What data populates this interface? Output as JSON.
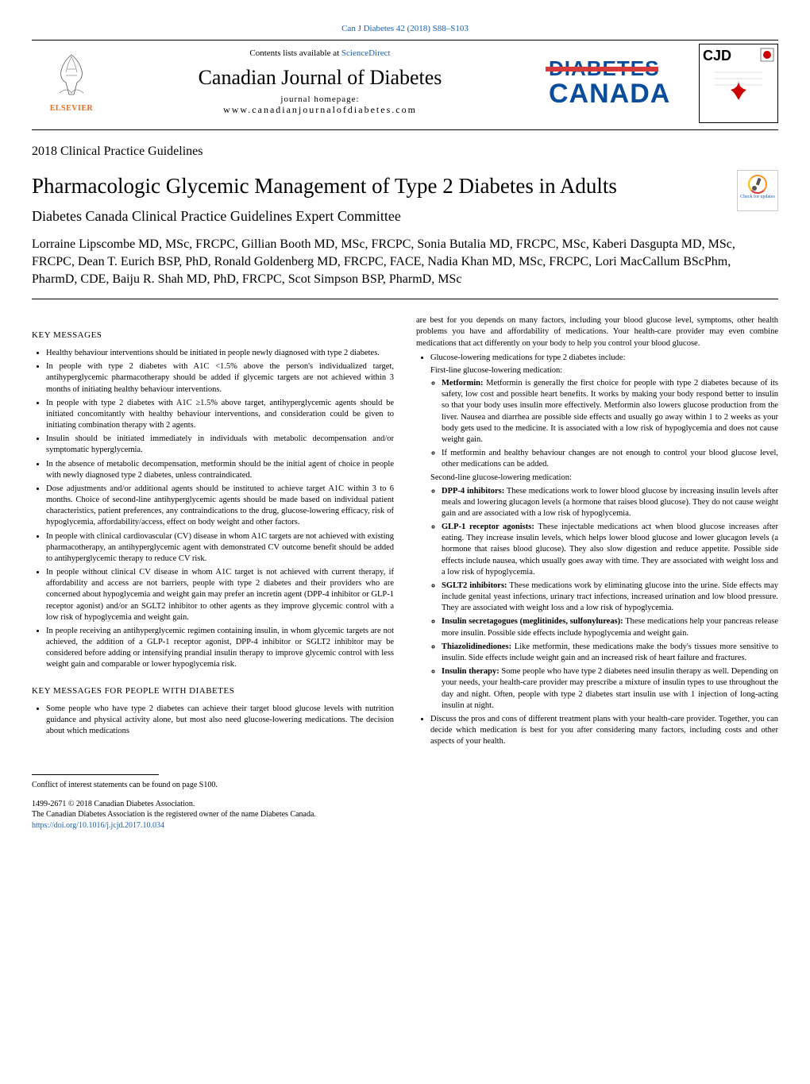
{
  "header": {
    "citation": "Can J Diabetes 42 (2018) S88–S103",
    "contents_prefix": "Contents lists available at ",
    "contents_link": "ScienceDirect",
    "journal_title": "Canadian Journal of Diabetes",
    "homepage_label": "journal homepage:",
    "homepage_url": "www.canadianjournalofdiabetes.com",
    "publisher_name": "ELSEVIER",
    "brand_line1": "DIABETES",
    "brand_line2": "CANADA",
    "cjd_label": "CJD",
    "check_updates": "Check for updates"
  },
  "article": {
    "section": "2018 Clinical Practice Guidelines",
    "title": "Pharmacologic Glycemic Management of Type 2 Diabetes in Adults",
    "subtitle": "Diabetes Canada Clinical Practice Guidelines Expert Committee",
    "authors": "Lorraine Lipscombe MD, MSc, FRCPC, Gillian Booth MD, MSc, FRCPC, Sonia Butalia MD, FRCPC, MSc, Kaberi Dasgupta MD, MSc, FRCPC, Dean T. Eurich BSP, PhD, Ronald Goldenberg MD, FRCPC, FACE, Nadia Khan MD, MSc, FRCPC, Lori MacCallum BScPhm, PharmD, CDE, Baiju R. Shah MD, PhD, FRCPC, Scot Simpson BSP, PharmD, MSc"
  },
  "col_left": {
    "heading1": "KEY MESSAGES",
    "bullets1": [
      "Healthy behaviour interventions should be initiated in people newly diagnosed with type 2 diabetes.",
      "In people with type 2 diabetes with A1C <1.5% above the person's individualized target, antihyperglycemic pharmacotherapy should be added if glycemic targets are not achieved within 3 months of initiating healthy behaviour interventions.",
      "In people with type 2 diabetes with A1C ≥1.5% above target, antihyperglycemic agents should be initiated concomitantly with healthy behaviour interventions, and consideration could be given to initiating combination therapy with 2 agents.",
      "Insulin should be initiated immediately in individuals with metabolic decompensation and/or symptomatic hyperglycemia.",
      "In the absence of metabolic decompensation, metformin should be the initial agent of choice in people with newly diagnosed type 2 diabetes, unless contraindicated.",
      "Dose adjustments and/or additional agents should be instituted to achieve target A1C within 3 to 6 months. Choice of second-line antihyperglycemic agents should be made based on individual patient characteristics, patient preferences, any contraindications to the drug, glucose-lowering efficacy, risk of hypoglycemia, affordability/access, effect on body weight and other factors.",
      "In people with clinical cardiovascular (CV) disease in whom A1C targets are not achieved with existing pharmacotherapy, an antihyperglycemic agent with demonstrated CV outcome benefit should be added to antihyperglycemic therapy to reduce CV risk.",
      "In people without clinical CV disease in whom A1C target is not achieved with current therapy, if affordability and access are not barriers, people with type 2 diabetes and their providers who are concerned about hypoglycemia and weight gain may prefer an incretin agent (DPP-4 inhibitor or GLP-1 receptor agonist) and/or an SGLT2 inhibitor to other agents as they improve glycemic control with a low risk of hypoglycemia and weight gain.",
      "In people receiving an antihyperglycemic regimen containing insulin, in whom glycemic targets are not achieved, the addition of a GLP-1 receptor agonist, DPP-4 inhibitor or SGLT2 inhibitor may be considered before adding or intensifying prandial insulin therapy to improve glycemic control with less weight gain and comparable or lower hypoglycemia risk."
    ],
    "heading2": "KEY MESSAGES FOR PEOPLE WITH DIABETES",
    "bullets2": [
      "Some people who have type 2 diabetes can achieve their target blood glucose levels with nutrition guidance and physical activity alone, but most also need glucose-lowering medications. The decision about which medications"
    ]
  },
  "col_right": {
    "continuation": "are best for you depends on many factors, including your blood glucose level, symptoms, other health problems you have and affordability of medications. Your health-care provider may even combine medications that act differently on your body to help you control your blood glucose.",
    "intro_bullet": "Glucose-lowering medications for type 2 diabetes include:",
    "firstline_label": "First-line glucose-lowering medication:",
    "metformin_label": "Metformin:",
    "metformin_text": " Metformin is generally the first choice for people with type 2 diabetes because of its safety, low cost and possible heart benefits. It works by making your body respond better to insulin so that your body uses insulin more effectively. Metformin also lowers glucose production from the liver. Nausea and diarrhea are possible side effects and usually go away within 1 to 2 weeks as your body gets used to the medicine. It is associated with a low risk of hypoglycemia and does not cause weight gain.",
    "metformin_note": "If metformin and healthy behaviour changes are not enough to control your blood glucose level, other medications can be added.",
    "secondline_label": "Second-line glucose-lowering medication:",
    "meds": [
      {
        "label": "DPP-4 inhibitors:",
        "text": " These medications work to lower blood glucose by increasing insulin levels after meals and lowering glucagon levels (a hormone that raises blood glucose). They do not cause weight gain and are associated with a low risk of hypoglycemia."
      },
      {
        "label": "GLP-1 receptor agonists:",
        "text": " These injectable medications act when blood glucose increases after eating. They increase insulin levels, which helps lower blood glucose and lower glucagon levels (a hormone that raises blood glucose). They also slow digestion and reduce appetite. Possible side effects include nausea, which usually goes away with time. They are associated with weight loss and a low risk of hypoglycemia."
      },
      {
        "label": "SGLT2 inhibitors:",
        "text": " These medications work by eliminating glucose into the urine. Side effects may include genital yeast infections, urinary tract infections, increased urination and low blood pressure. They are associated with weight loss and a low risk of hypoglycemia."
      },
      {
        "label": "Insulin secretagogues (meglitinides, sulfonylureas):",
        "text": " These medications help your pancreas release more insulin. Possible side effects include hypoglycemia and weight gain."
      },
      {
        "label": "Thiazolidinediones:",
        "text": " Like metformin, these medications make the body's tissues more sensitive to insulin. Side effects include weight gain and an increased risk of heart failure and fractures."
      },
      {
        "label": "Insulin therapy:",
        "text": " Some people who have type 2 diabetes need insulin therapy as well. Depending on your needs, your health-care provider may prescribe a mixture of insulin types to use throughout the day and night. Often, people with type 2 diabetes start insulin use with 1 injection of long-acting insulin at night."
      }
    ],
    "final_bullet": "Discuss the pros and cons of different treatment plans with your health-care provider. Together, you can decide which medication is best for you after considering many factors, including costs and other aspects of your health."
  },
  "footer": {
    "conflict": "Conflict of interest statements can be found on page S100.",
    "issn": "1499-2671 © 2018 Canadian Diabetes Association.",
    "reg": "The Canadian Diabetes Association is the registered owner of the name Diabetes Canada.",
    "doi": "https://doi.org/10.1016/j.jcjd.2017.10.034"
  },
  "colors": {
    "link": "#1a5fb4",
    "publisher": "#e86d1f",
    "brand_blue": "#0a4c9e",
    "brand_red": "#d93a3a"
  }
}
